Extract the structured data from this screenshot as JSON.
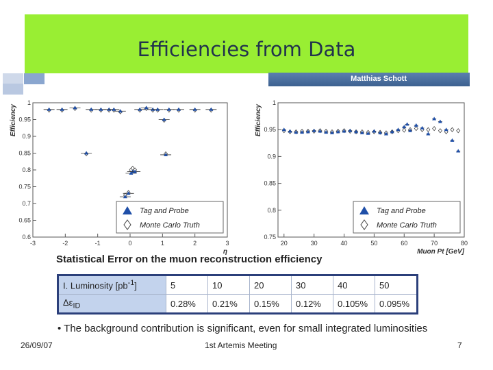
{
  "slide": {
    "title": "Efficiencies from Data",
    "author": "Matthias Schott",
    "date": "26/09/07",
    "event": "1st Artemis Meeting",
    "page": "7"
  },
  "colors": {
    "band": "#99ee33",
    "title": "#22334d",
    "tag_probe": "#1f4fa8",
    "mc_truth": "#444444"
  },
  "chart_data": [
    {
      "type": "scatter",
      "xlabel": "η",
      "ylabel": "Efficiency",
      "xlim": [
        -3,
        3
      ],
      "ylim": [
        0.6,
        1.0
      ],
      "xticks": [
        "-3",
        "-2",
        "-1",
        "0",
        "1",
        "2",
        "3"
      ],
      "yticks": [
        "0.6",
        "0.65",
        "0.7",
        "0.75",
        "0.8",
        "0.85",
        "0.9",
        "0.95",
        "1"
      ],
      "legend": {
        "position": "bottom-right",
        "entries": [
          "Tag and Probe",
          "Monte Carlo Truth"
        ]
      },
      "series": [
        {
          "name": "Tag and Probe",
          "x": [
            -2.5,
            -2.1,
            -1.7,
            -1.35,
            -1.2,
            -0.9,
            -0.65,
            -0.5,
            -0.3,
            -0.15,
            -0.05,
            0.03,
            0.08,
            0.15,
            0.3,
            0.5,
            0.7,
            0.85,
            1.05,
            1.1,
            1.2,
            1.5,
            2.0,
            2.5
          ],
          "y": [
            0.98,
            0.98,
            0.985,
            0.85,
            0.98,
            0.98,
            0.98,
            0.98,
            0.975,
            0.72,
            0.73,
            0.79,
            0.795,
            0.795,
            0.98,
            0.985,
            0.98,
            0.98,
            0.95,
            0.845,
            0.98,
            0.98,
            0.98,
            0.98
          ]
        },
        {
          "name": "Monte Carlo Truth",
          "x": [
            -2.5,
            -2.1,
            -1.7,
            -1.35,
            -1.2,
            -0.9,
            -0.65,
            -0.5,
            -0.3,
            -0.15,
            -0.05,
            0.03,
            0.08,
            0.15,
            0.3,
            0.5,
            0.7,
            0.85,
            1.05,
            1.1,
            1.2,
            1.5,
            2.0,
            2.5
          ],
          "y": [
            0.978,
            0.978,
            0.983,
            0.848,
            0.978,
            0.978,
            0.978,
            0.978,
            0.973,
            0.725,
            0.733,
            0.8,
            0.805,
            0.8,
            0.978,
            0.983,
            0.978,
            0.978,
            0.948,
            0.848,
            0.978,
            0.978,
            0.978,
            0.978
          ]
        }
      ]
    },
    {
      "type": "scatter",
      "xlabel": "Muon Pt [GeV]",
      "ylabel": "Efficiency",
      "xlim": [
        18,
        80
      ],
      "ylim": [
        0.75,
        1.0
      ],
      "xticks": [
        "20",
        "30",
        "40",
        "50",
        "60",
        "70",
        "80"
      ],
      "yticks": [
        "0.75",
        "0.8",
        "0.85",
        "0.9",
        "0.95",
        "1"
      ],
      "legend": {
        "position": "bottom-right",
        "entries": [
          "Tag and Probe",
          "Monte Carlo Truth"
        ]
      },
      "series": [
        {
          "name": "Tag and Probe",
          "x": [
            20,
            22,
            24,
            26,
            28,
            30,
            32,
            34,
            36,
            38,
            40,
            42,
            44,
            46,
            48,
            50,
            52,
            54,
            56,
            58,
            60,
            61,
            62,
            64,
            66,
            68,
            70,
            72,
            74,
            76,
            78
          ],
          "y": [
            0.95,
            0.947,
            0.945,
            0.945,
            0.946,
            0.948,
            0.947,
            0.945,
            0.944,
            0.946,
            0.947,
            0.948,
            0.946,
            0.944,
            0.943,
            0.947,
            0.944,
            0.942,
            0.946,
            0.95,
            0.955,
            0.96,
            0.948,
            0.958,
            0.953,
            0.942,
            0.97,
            0.965,
            0.95,
            0.93,
            0.91
          ]
        },
        {
          "name": "Monte Carlo Truth",
          "x": [
            20,
            22,
            24,
            26,
            28,
            30,
            32,
            34,
            36,
            38,
            40,
            42,
            44,
            46,
            48,
            50,
            52,
            54,
            56,
            58,
            60,
            62,
            64,
            66,
            68,
            70,
            72,
            74,
            76,
            78
          ],
          "y": [
            0.948,
            0.946,
            0.946,
            0.947,
            0.947,
            0.947,
            0.948,
            0.947,
            0.946,
            0.947,
            0.948,
            0.947,
            0.946,
            0.946,
            0.945,
            0.946,
            0.945,
            0.944,
            0.946,
            0.948,
            0.949,
            0.95,
            0.952,
            0.95,
            0.95,
            0.952,
            0.948,
            0.946,
            0.95,
            0.948
          ]
        }
      ]
    }
  ],
  "stats": {
    "title": "Statistical Error on the muon reconstruction efficiency",
    "row1_label": "I. Luminosity [pb",
    "row1_sup": "-1",
    "row1_close": "]",
    "row2_label": "Δε",
    "row2_sub": "ID",
    "luminosities": [
      "5",
      "10",
      "20",
      "30",
      "40",
      "50"
    ],
    "errors": [
      "0.28%",
      "0.21%",
      "0.15%",
      "0.12%",
      "0.105%",
      "0.095%"
    ]
  },
  "bullet": "The background contribution is significant, even for small integrated luminosities"
}
